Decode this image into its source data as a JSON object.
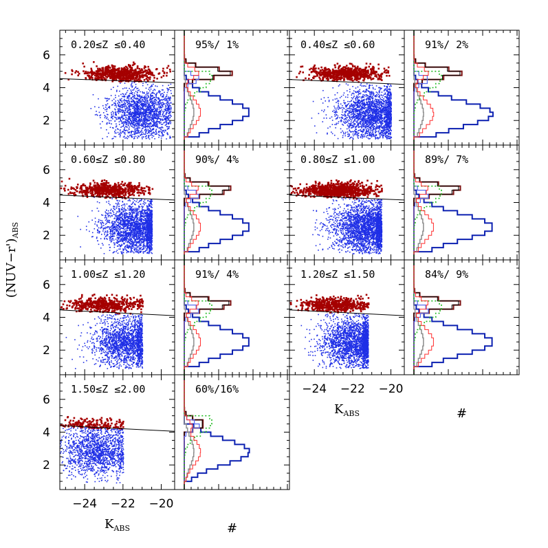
{
  "chart_data": {
    "type": "scatter",
    "description_free": true,
    "y_axis_label_main": "(NUV−r')",
    "y_axis_label_sub": "ABS",
    "x_axis_label_main": "K",
    "x_axis_label_sub": "ABS",
    "hist_axis_label": "#",
    "scatter_xlim": [
      -25.3,
      -19.3
    ],
    "scatter_ylim": [
      0.5,
      7.5
    ],
    "x_ticks": [
      -24,
      -22,
      -20
    ],
    "x_tick_labels": [
      "−24",
      "−22",
      "−20"
    ],
    "y_ticks": [
      2,
      4,
      6
    ],
    "y_tick_labels": [
      "2",
      "4",
      "6"
    ],
    "colors": {
      "red_sequence": "#a50000",
      "blue_cloud": "#1f2fe6",
      "hist_red": "#7a1010",
      "hist_blue": "#0a1fb0",
      "hist_grey": "#8c8c8c",
      "hist_green": "#22bb22",
      "hist_black": "#000000",
      "hist_lightblue": "#5a6cf0",
      "hist_redline": "#ff2a2a"
    },
    "panels": [
      {
        "redshift_label": "0.20≤Z ≤0.40",
        "percent_label": "95%/ 1%",
        "cut_line": [
          4.55,
          4.3
        ],
        "red_center": [
          -22.2,
          4.9
        ],
        "blue_center": [
          -21.0,
          2.5
        ],
        "n_red": 700,
        "n_blue": 1800,
        "xmin": -25.3,
        "xmax": -19.5
      },
      {
        "redshift_label": "0.40≤Z ≤0.60",
        "percent_label": "91%/ 2%",
        "cut_line": [
          4.5,
          4.2
        ],
        "red_center": [
          -22.3,
          4.9
        ],
        "blue_center": [
          -21.0,
          2.4
        ],
        "n_red": 650,
        "n_blue": 2100,
        "xmin": -25.0,
        "xmax": -20.0
      },
      {
        "redshift_label": "0.60≤Z ≤0.80",
        "percent_label": "90%/ 4%",
        "cut_line": [
          4.45,
          4.15
        ],
        "red_center": [
          -22.8,
          4.8
        ],
        "blue_center": [
          -21.3,
          2.5
        ],
        "n_red": 600,
        "n_blue": 2300,
        "xmin": -25.3,
        "xmax": -20.5
      },
      {
        "redshift_label": "0.80≤Z ≤1.00",
        "percent_label": "89%/ 7%",
        "cut_line": [
          4.45,
          4.15
        ],
        "red_center": [
          -22.8,
          4.8
        ],
        "blue_center": [
          -21.3,
          2.5
        ],
        "n_red": 900,
        "n_blue": 2600,
        "xmin": -25.3,
        "xmax": -20.5
      },
      {
        "redshift_label": "1.00≤Z ≤1.20",
        "percent_label": "91%/ 4%",
        "cut_line": [
          4.45,
          4.1
        ],
        "red_center": [
          -23.0,
          4.8
        ],
        "blue_center": [
          -21.8,
          2.5
        ],
        "n_red": 500,
        "n_blue": 1800,
        "xmin": -25.3,
        "xmax": -21.0
      },
      {
        "redshift_label": "1.20≤Z ≤1.50",
        "percent_label": "84%/ 9%",
        "cut_line": [
          4.45,
          4.1
        ],
        "red_center": [
          -23.0,
          4.8
        ],
        "blue_center": [
          -21.9,
          2.5
        ],
        "n_red": 550,
        "n_blue": 2200,
        "xmin": -25.3,
        "xmax": -21.2
      },
      {
        "redshift_label": "1.50≤Z ≤2.00",
        "percent_label": "60%/16%",
        "cut_line": [
          4.4,
          4.05
        ],
        "red_center": [
          -23.7,
          4.5
        ],
        "blue_center": [
          -23.4,
          2.8
        ],
        "n_red": 180,
        "n_blue": 1500,
        "xmin": -25.3,
        "xmax": -22.0
      }
    ]
  }
}
